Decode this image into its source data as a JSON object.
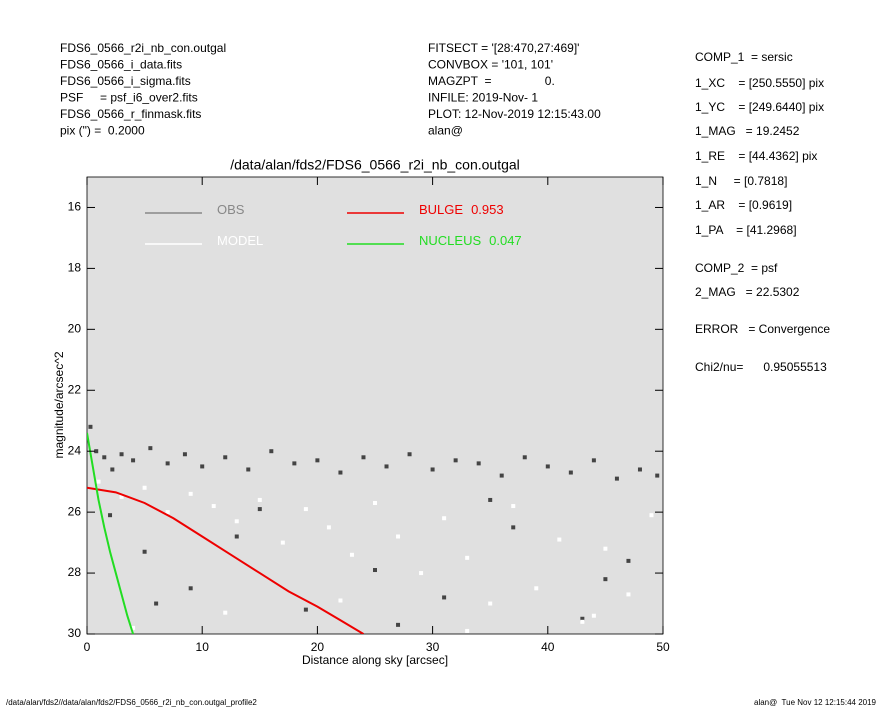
{
  "header_left": [
    "FDS6_0566_r2i_nb_con.outgal",
    "FDS6_0566_i_data.fits",
    "FDS6_0566_i_sigma.fits",
    "PSF     = psf_i6_over2.fits",
    "FDS6_0566_r_finmask.fits",
    "pix (\") =  0.2000"
  ],
  "header_middle": [
    "FITSECT = '[28:470,27:469]'",
    "CONVBOX = '101, 101'",
    "MAGZPT  =                0.",
    "INFILE: 2019-Nov- 1",
    "PLOT: 12-Nov-2019 12:15:43.00",
    "alan@"
  ],
  "params": [
    "COMP_1  = sersic",
    "1_XC    = [250.5550] pix",
    "1_YC    = [249.6440] pix",
    "1_MAG   = 19.2452",
    "1_RE    = [44.4362] pix",
    "1_N     = [0.7818]",
    "1_AR    = [0.9619]",
    "1_PA    = [41.2968]",
    "COMP_2  = psf",
    "2_MAG   = 22.5302",
    "ERROR   = Convergence",
    "Chi2/nu=      0.95055513"
  ],
  "footer_left": "/data/alan/fds2//data/alan/fds2/FDS6_0566_r2i_nb_con.outgal_profile2",
  "footer_right": "alan@  Tue Nov 12 12:15:44 2019",
  "chart_data": {
    "type": "scatter",
    "title": "/data/alan/fds2/FDS6_0566_r2i_nb_con.outgal",
    "xlabel": "Distance along sky [arcsec]",
    "ylabel": "magnitude/arcsec^2",
    "xlim": [
      0,
      50
    ],
    "xticks": [
      0,
      10,
      20,
      30,
      40,
      50
    ],
    "ylim": [
      15,
      30
    ],
    "yticks": [
      16,
      18,
      20,
      22,
      24,
      26,
      28,
      30
    ],
    "y_inverted": true,
    "series": [
      {
        "name": "OBS",
        "type": "scatter",
        "color": "#444444",
        "legend_color": "#888888",
        "x": [
          0.3,
          0.8,
          1.5,
          2.2,
          3,
          4,
          5.5,
          7,
          8.5,
          10,
          12,
          14,
          16,
          18,
          20,
          22,
          24,
          26,
          28,
          30,
          32,
          34,
          36,
          38,
          40,
          42,
          44,
          46,
          48,
          49.5,
          2,
          5,
          9,
          13,
          19,
          25,
          31,
          37,
          43,
          47,
          6,
          15,
          27,
          35,
          45
        ],
        "values": [
          23.2,
          24,
          24.2,
          24.6,
          24.1,
          24.3,
          23.9,
          24.4,
          24.1,
          24.5,
          24.2,
          24.6,
          24.0,
          24.4,
          24.3,
          24.7,
          24.2,
          24.5,
          24.1,
          24.6,
          24.3,
          24.4,
          24.8,
          24.2,
          24.5,
          24.7,
          24.3,
          24.9,
          24.6,
          24.8,
          26.1,
          27.3,
          28.5,
          26.8,
          29.2,
          27.9,
          28.8,
          26.5,
          29.5,
          27.6,
          29.0,
          25.9,
          29.7,
          25.6,
          28.2
        ]
      },
      {
        "name": "MODEL",
        "type": "scatter",
        "color": "#ffffff",
        "legend_color": "#ffffff",
        "x": [
          1,
          3,
          5,
          7,
          9,
          11,
          13,
          15,
          17,
          19,
          21,
          23,
          25,
          27,
          29,
          31,
          33,
          35,
          37,
          39,
          41,
          43,
          45,
          47,
          49,
          4,
          12,
          22,
          33,
          44
        ],
        "values": [
          25.0,
          25.5,
          25.2,
          26.0,
          25.4,
          25.8,
          26.3,
          25.6,
          27.0,
          25.9,
          26.5,
          27.4,
          25.7,
          26.8,
          28.0,
          26.2,
          27.5,
          29.0,
          25.8,
          28.5,
          26.9,
          29.6,
          27.2,
          28.7,
          26.1,
          29.8,
          29.3,
          28.9,
          29.9,
          29.4
        ]
      },
      {
        "name": "BULGE",
        "fraction": 0.953,
        "type": "line",
        "color": "#ee0000",
        "legend_color": "#ee0000",
        "x": [
          0,
          2.5,
          5,
          7.5,
          10,
          12.5,
          15,
          17.5,
          20,
          22,
          24
        ],
        "values": [
          25.2,
          25.35,
          25.7,
          26.2,
          26.8,
          27.4,
          28.0,
          28.6,
          29.1,
          29.55,
          30.0
        ]
      },
      {
        "name": "NUCLEUS",
        "fraction": 0.047,
        "type": "line",
        "color": "#22dd22",
        "legend_color": "#22dd22",
        "x": [
          0,
          0.5,
          1,
          1.5,
          2,
          2.5,
          3,
          3.5,
          4
        ],
        "values": [
          23.4,
          24.5,
          25.6,
          26.5,
          27.3,
          28.0,
          28.7,
          29.4,
          30.0
        ]
      }
    ]
  }
}
